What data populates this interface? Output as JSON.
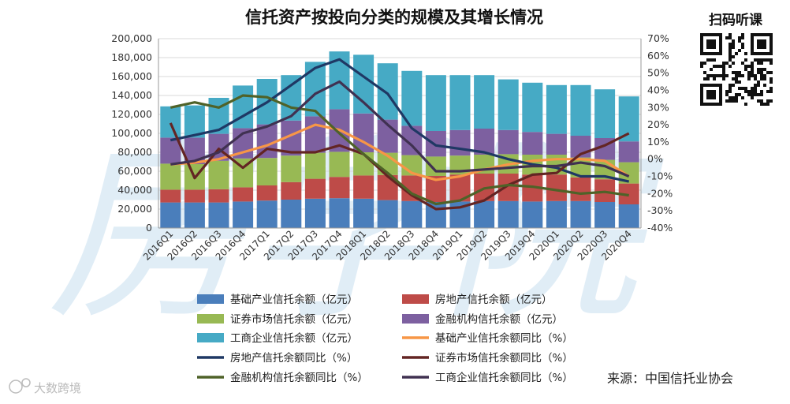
{
  "chart_data": {
    "type": "bar+line",
    "title": "信托资产按投向分类的规模及其增长情况",
    "categories": [
      "2016Q1",
      "2016Q2",
      "2016Q3",
      "2016Q4",
      "2017Q1",
      "2017Q2",
      "2017Q3",
      "2017Q4",
      "2018Q1",
      "2018Q2",
      "2018Q3",
      "2018Q4",
      "2019Q1",
      "2019Q2",
      "2019Q3",
      "2019Q4",
      "2020Q1",
      "2020Q2",
      "2020Q3",
      "2020Q4"
    ],
    "y_left": {
      "min": 0,
      "max": 200000,
      "ticks": [
        "0",
        "20,000",
        "40,000",
        "60,000",
        "80,000",
        "100,000",
        "120,000",
        "140,000",
        "160,000",
        "180,000",
        "200,000"
      ]
    },
    "y_right": {
      "min": -40,
      "max": 70,
      "ticks": [
        "-40%",
        "-30%",
        "-20%",
        "-10%",
        "0%",
        "10%",
        "20%",
        "30%",
        "40%",
        "50%",
        "60%",
        "70%"
      ]
    },
    "bar_series": [
      {
        "name": "基础产业信托余额（亿元）",
        "color": "#4a7ebb",
        "values": [
          27000,
          27000,
          27000,
          28000,
          29000,
          30000,
          31000,
          31500,
          31000,
          29500,
          28500,
          27500,
          28000,
          28500,
          28500,
          28000,
          28500,
          28500,
          27500,
          25000
        ]
      },
      {
        "name": "房地产信托余额（亿元）",
        "color": "#be4b48",
        "values": [
          13500,
          13500,
          14000,
          15000,
          16000,
          18500,
          21000,
          22500,
          24500,
          26500,
          27000,
          27500,
          28500,
          29000,
          29000,
          28500,
          28000,
          25000,
          24000,
          22000
        ]
      },
      {
        "name": "证券市场信托余额（亿元）",
        "color": "#98b954",
        "values": [
          27500,
          27000,
          30000,
          30500,
          29000,
          28000,
          27500,
          26500,
          24500,
          23500,
          21500,
          20500,
          20000,
          20000,
          20500,
          21000,
          21000,
          21000,
          20500,
          22500
        ]
      },
      {
        "name": "金融机构信托余额（亿元）",
        "color": "#7d60a0",
        "values": [
          27500,
          28000,
          28500,
          32000,
          35500,
          37000,
          38500,
          45000,
          41000,
          35000,
          31000,
          27000,
          27000,
          27500,
          25500,
          24000,
          22000,
          23000,
          23000,
          22000
        ]
      },
      {
        "name": "工商企业信托余额（亿元）",
        "color": "#46aac5",
        "values": [
          33000,
          34000,
          38000,
          45000,
          48000,
          48000,
          57500,
          61000,
          62000,
          59500,
          58000,
          59000,
          58000,
          56500,
          53500,
          52000,
          51500,
          53500,
          51500,
          47500
        ]
      }
    ],
    "line_series": [
      {
        "name": "基础产业信托余额同比（%）",
        "color": "#f79646",
        "values": [
          -3,
          -2,
          0,
          4,
          8,
          14,
          20,
          17,
          10,
          2,
          -8,
          -12,
          -10,
          -6,
          -3,
          -1,
          0,
          0,
          -1,
          -10
        ]
      },
      {
        "name": "房地产信托余额同比（%）",
        "color": "#1f3864",
        "values": [
          11,
          14,
          17,
          25,
          33,
          43,
          53,
          58,
          48,
          38,
          18,
          8,
          6,
          4,
          0,
          -3,
          -5,
          -10,
          -10,
          -13
        ]
      },
      {
        "name": "证券市场信托余额同比（%）",
        "color": "#632523",
        "values": [
          21,
          -11,
          6,
          -5,
          6,
          4,
          4,
          8,
          3,
          -10,
          -21,
          -29,
          -28,
          -24,
          -15,
          -9,
          -8,
          3,
          8,
          15
        ]
      },
      {
        "name": "金融机构信托余额同比（%）",
        "color": "#4f6228",
        "values": [
          30,
          33,
          30,
          37,
          36,
          30,
          28,
          15,
          3,
          -8,
          -20,
          -26,
          -24,
          -17,
          -15,
          -16,
          -18,
          -20,
          -19,
          -21
        ]
      },
      {
        "name": "工商企业信托余额同比（%）",
        "color": "#403151",
        "values": [
          -3,
          -1,
          4,
          15,
          19,
          25,
          38,
          45,
          33,
          20,
          8,
          -7,
          -7,
          -6,
          -5,
          -4,
          -4,
          -2,
          -4,
          -10
        ]
      }
    ]
  },
  "legend_items": [
    {
      "label": "基础产业信托余额（亿元）",
      "kind": "bar",
      "color": "#4a7ebb"
    },
    {
      "label": "房地产信托余额（亿元）",
      "kind": "bar",
      "color": "#be4b48"
    },
    {
      "label": "证券市场信托余额（亿元）",
      "kind": "bar",
      "color": "#98b954"
    },
    {
      "label": "金融机构信托余额（亿元）",
      "kind": "bar",
      "color": "#7d60a0"
    },
    {
      "label": "工商企业信托余额（亿元）",
      "kind": "bar",
      "color": "#46aac5"
    },
    {
      "label": "基础产业信托余额同比（%）",
      "kind": "line",
      "color": "#f79646"
    },
    {
      "label": "房地产信托余额同比（%）",
      "kind": "line",
      "color": "#1f3864"
    },
    {
      "label": "证券市场信托余额同比（%）",
      "kind": "line",
      "color": "#632523"
    },
    {
      "label": "金融机构信托余额同比（%）",
      "kind": "line",
      "color": "#4f6228"
    },
    {
      "label": "工商企业信托余额同比（%）",
      "kind": "line",
      "color": "#403151"
    }
  ],
  "source_text": "来源：中国信托业协会",
  "qr_label": "扫码听课",
  "watermark_bottom": "大数跨境",
  "watermark_big": "房学院",
  "watermark_brand": "房"
}
